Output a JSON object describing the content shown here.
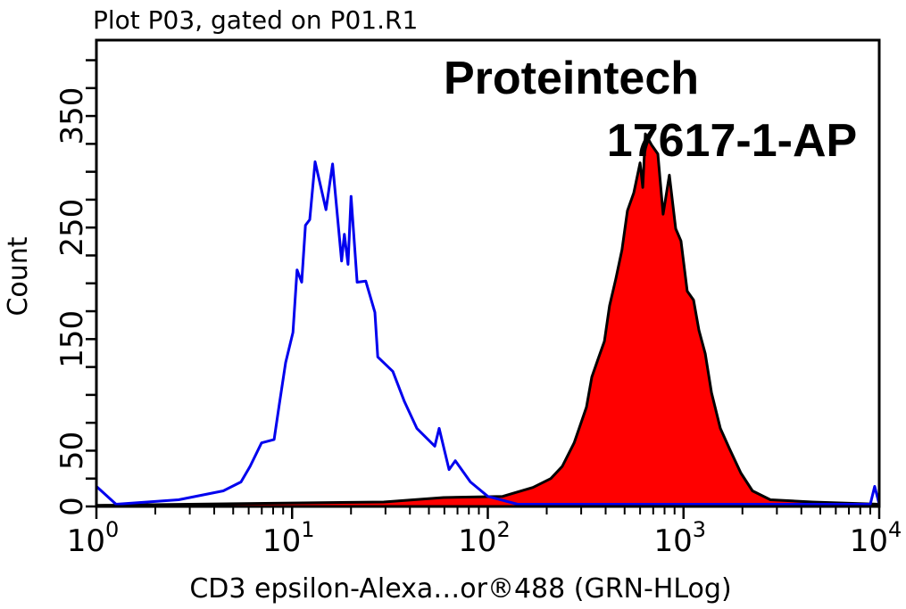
{
  "chart_data": {
    "type": "area",
    "title": "Plot P03, gated on P01.R1",
    "xlabel": "CD3 epsilon-Alexa…or®488 (GRN-HLog)",
    "ylabel": "Count",
    "x_scale": "log",
    "xlim": [
      1,
      10000
    ],
    "ylim": [
      0,
      418
    ],
    "x_ticks": [
      {
        "base": "10",
        "exp": "0"
      },
      {
        "base": "10",
        "exp": "1"
      },
      {
        "base": "10",
        "exp": "2"
      },
      {
        "base": "10",
        "exp": "3"
      },
      {
        "base": "10",
        "exp": "4"
      }
    ],
    "y_tick_labels": [
      "0",
      "50",
      "150",
      "250",
      "350"
    ],
    "y_tick_values": [
      0,
      50,
      150,
      250,
      350
    ],
    "grid": false,
    "watermark": [
      "Proteintech",
      "17617-1-AP"
    ],
    "series": [
      {
        "style": "outline",
        "color": "#0000ee",
        "points": [
          [
            1,
            18
          ],
          [
            1.26,
            2
          ],
          [
            2.63,
            6
          ],
          [
            4.45,
            14
          ],
          [
            5.48,
            22
          ],
          [
            6.1,
            36
          ],
          [
            6.98,
            57
          ],
          [
            8.09,
            60
          ],
          [
            8.61,
            92
          ],
          [
            9.27,
            129
          ],
          [
            10.1,
            156
          ],
          [
            10.6,
            212
          ],
          [
            11.2,
            201
          ],
          [
            11.7,
            252
          ],
          [
            12.3,
            257
          ],
          [
            13.1,
            309
          ],
          [
            14.9,
            266
          ],
          [
            16.1,
            307
          ],
          [
            17.9,
            220
          ],
          [
            18.5,
            244
          ],
          [
            19.3,
            217
          ],
          [
            20.0,
            278
          ],
          [
            21.5,
            201
          ],
          [
            23.8,
            202
          ],
          [
            26.5,
            174
          ],
          [
            27.4,
            134
          ],
          [
            32.7,
            121
          ],
          [
            37.5,
            94
          ],
          [
            43.4,
            70
          ],
          [
            53.6,
            54
          ],
          [
            56.4,
            70
          ],
          [
            63.4,
            33
          ],
          [
            68.2,
            41
          ],
          [
            81.5,
            22
          ],
          [
            100,
            9
          ],
          [
            142,
            2
          ],
          [
            501,
            2
          ],
          [
            9000,
            2
          ],
          [
            9480,
            18
          ],
          [
            10000,
            2
          ]
        ]
      },
      {
        "style": "filled",
        "color": "#ff0000",
        "edge_color": "#000000",
        "points": [
          [
            1,
            1
          ],
          [
            29.4,
            4
          ],
          [
            59.4,
            8
          ],
          [
            119,
            9
          ],
          [
            170,
            17
          ],
          [
            210,
            25
          ],
          [
            240,
            36
          ],
          [
            276,
            57
          ],
          [
            319,
            89
          ],
          [
            340,
            116
          ],
          [
            366,
            132
          ],
          [
            394,
            148
          ],
          [
            419,
            180
          ],
          [
            451,
            204
          ],
          [
            485,
            230
          ],
          [
            517,
            265
          ],
          [
            557,
            281
          ],
          [
            600,
            308
          ],
          [
            619,
            286
          ],
          [
            638,
            334
          ],
          [
            687,
            324
          ],
          [
            739,
            316
          ],
          [
            787,
            262
          ],
          [
            847,
            297
          ],
          [
            912,
            249
          ],
          [
            971,
            238
          ],
          [
            1045,
            193
          ],
          [
            1125,
            185
          ],
          [
            1199,
            158
          ],
          [
            1291,
            137
          ],
          [
            1390,
            102
          ],
          [
            1542,
            70
          ],
          [
            1714,
            52
          ],
          [
            1963,
            30
          ],
          [
            2250,
            14
          ],
          [
            2780,
            6
          ],
          [
            4550,
            4
          ],
          [
            10000,
            2
          ]
        ]
      }
    ]
  }
}
